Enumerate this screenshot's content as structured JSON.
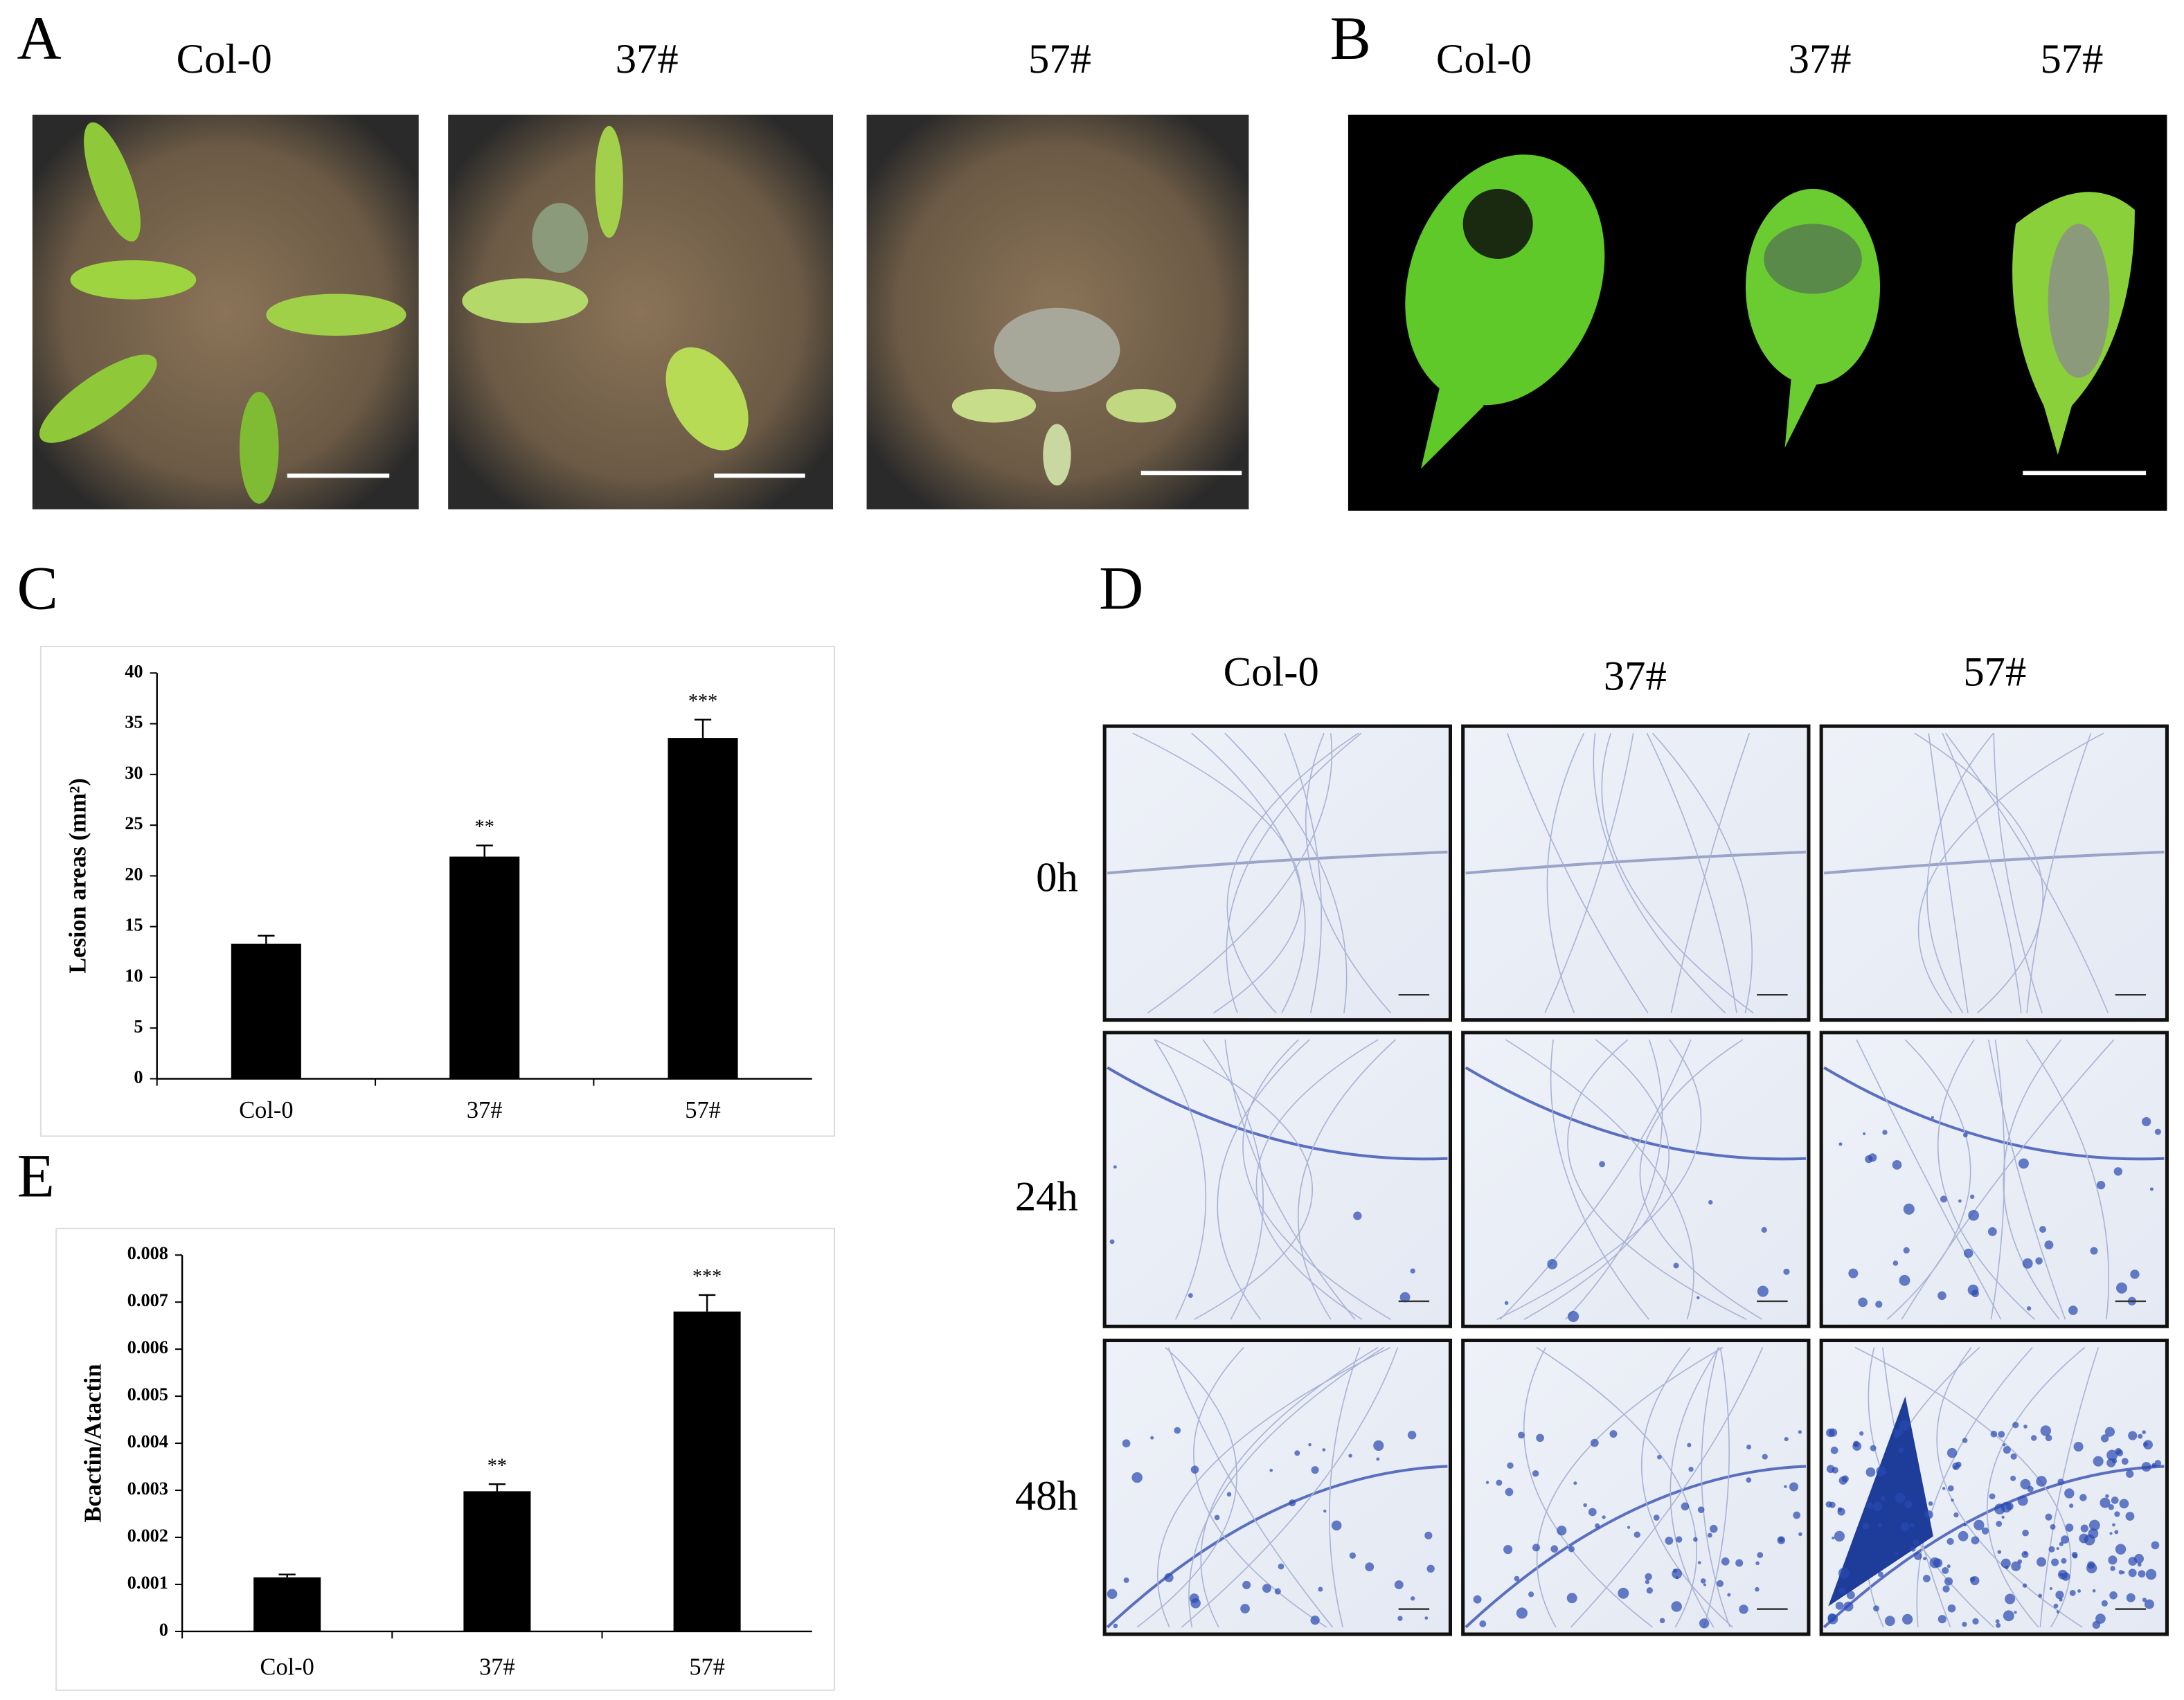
{
  "panels": {
    "A": {
      "letter": "A",
      "labels": [
        "Col-0",
        "37#",
        "57#"
      ]
    },
    "B": {
      "letter": "B",
      "labels": [
        "Col-0",
        "37#",
        "57#"
      ]
    },
    "C": {
      "letter": "C"
    },
    "D": {
      "letter": "D",
      "labels": [
        "Col-0",
        "37#",
        "57#"
      ],
      "rows": [
        "0h",
        "24h",
        "48h"
      ]
    },
    "E": {
      "letter": "E"
    }
  },
  "chart_data": [
    {
      "type": "bar",
      "y_label": "Lesion areas (mm²)",
      "categories": [
        "Col-0",
        "37#",
        "57#"
      ],
      "values": [
        13.3,
        21.9,
        33.6
      ],
      "errors": [
        0.8,
        1.1,
        1.8
      ],
      "significance": [
        null,
        "**",
        "***"
      ],
      "color": "#000000",
      "ylim": [
        0,
        40
      ],
      "yticks": [
        0,
        5,
        10,
        15,
        20,
        25,
        30,
        35,
        40
      ],
      "grid": false
    },
    {
      "type": "bar",
      "y_label": "Bcactin/Atactin",
      "categories": [
        "Col-0",
        "37#",
        "57#"
      ],
      "values": [
        0.00115,
        0.00298,
        0.0068
      ],
      "errors": [
        6e-05,
        0.00015,
        0.00035
      ],
      "significance": [
        null,
        "**",
        "***"
      ],
      "color": "#000000",
      "ylim": [
        0,
        0.008
      ],
      "yticks": [
        0,
        0.001,
        0.002,
        0.003,
        0.004,
        0.005,
        0.006,
        0.007,
        0.008
      ],
      "grid": false
    }
  ]
}
